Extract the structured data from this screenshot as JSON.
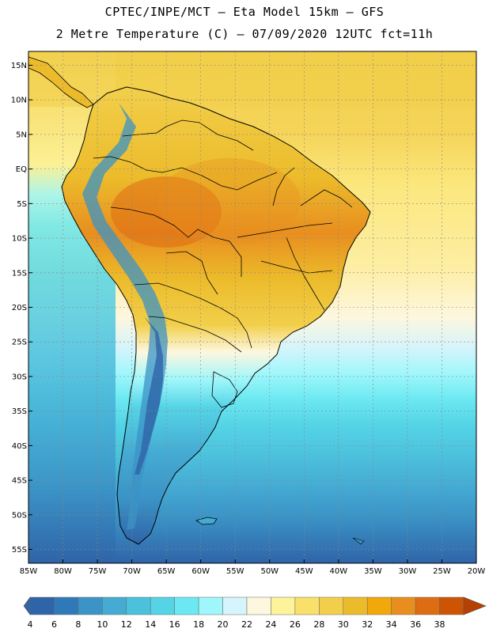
{
  "title_line1": "CPTEC/INPE/MCT –  Eta Model 15km – GFS",
  "title_line2": "2 Metre Temperature (C) – 07/09/2020 12UTC fct=11h",
  "latitude_labels": [
    "15N",
    "10N",
    "5N",
    "EQ",
    "5S",
    "10S",
    "15S",
    "20S",
    "25S",
    "30S",
    "35S",
    "40S",
    "45S",
    "50S",
    "55S"
  ],
  "latitude_values": [
    15,
    10,
    5,
    0,
    -5,
    -10,
    -15,
    -20,
    -25,
    -30,
    -35,
    -40,
    -45,
    -50,
    -55
  ],
  "longitude_labels": [
    "85W",
    "80W",
    "75W",
    "70W",
    "65W",
    "60W",
    "55W",
    "50W",
    "45W",
    "40W",
    "35W",
    "30W",
    "25W",
    "20W"
  ],
  "longitude_values": [
    -85,
    -80,
    -75,
    -70,
    -65,
    -60,
    -55,
    -50,
    -45,
    -40,
    -35,
    -30,
    -25,
    -20
  ],
  "colorbar": {
    "labels": [
      "4",
      "6",
      "8",
      "10",
      "12",
      "14",
      "16",
      "18",
      "20",
      "22",
      "24",
      "26",
      "28",
      "30",
      "32",
      "34",
      "36",
      "38"
    ],
    "colors": [
      "#2f64a8",
      "#2f79b8",
      "#3b93c6",
      "#45abd3",
      "#4cc1dc",
      "#55d4e6",
      "#6ce8f2",
      "#9ff7fb",
      "#d5f4fb",
      "#fdf7df",
      "#fdf39b",
      "#f9e06a",
      "#f2cf4a",
      "#ecbb2b",
      "#f0a80b",
      "#e88e1f",
      "#de6c12",
      "#cd5405",
      "#b44103"
    ]
  },
  "chart_data": {
    "type": "heatmap",
    "title": "CPTEC/INPE/MCT –  Eta Model 15km – GFS",
    "subtitle": "2 Metre Temperature (C) – 07/09/2020 12UTC fct=11h",
    "variable": "2 Metre Temperature",
    "units": "C",
    "lon_range": [
      -85,
      -20
    ],
    "lat_range": [
      -57,
      17
    ],
    "value_range": [
      4,
      38
    ]
  }
}
